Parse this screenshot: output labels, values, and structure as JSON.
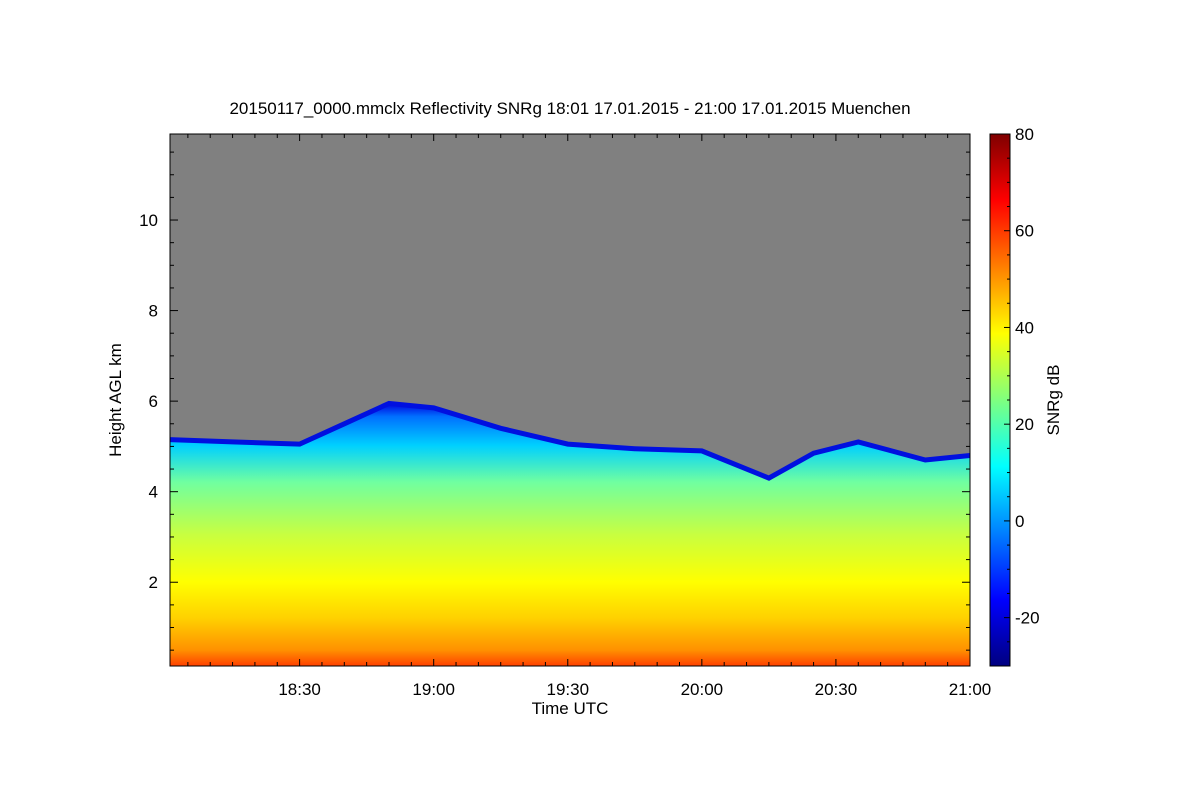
{
  "title": "20150117_0000.mmclx Reflectivity SNRg   18:01 17.01.2015 - 21:00 17.01.2015 Muenchen",
  "chart_data": {
    "type": "heatmap",
    "title": "20150117_0000.mmclx Reflectivity SNRg   18:01 17.01.2015 - 21:00 17.01.2015 Muenchen",
    "xlabel": "Time UTC",
    "ylabel": "Height AGL km",
    "xlim": [
      "18:01",
      "21:00"
    ],
    "ylim": [
      0.15,
      11.9
    ],
    "x_ticks": [
      "18:30",
      "19:00",
      "19:30",
      "20:00",
      "20:30",
      "21:00"
    ],
    "y_ticks": [
      2,
      4,
      6,
      8,
      10
    ],
    "colorbar": {
      "label": "SNRg dB",
      "range": [
        -30,
        80
      ],
      "ticks": [
        -20,
        0,
        20,
        40,
        60,
        80
      ],
      "colormap": [
        "#00007f",
        "#0000ff",
        "#007fff",
        "#00ffff",
        "#7fff7f",
        "#ffff00",
        "#ff7f00",
        "#ff0000",
        "#7f0000"
      ]
    },
    "no_signal_color": "#808080",
    "cloud_top_km": [
      {
        "time": "18:01",
        "height": 5.15
      },
      {
        "time": "18:15",
        "height": 5.1
      },
      {
        "time": "18:30",
        "height": 5.05
      },
      {
        "time": "18:40",
        "height": 5.5
      },
      {
        "time": "18:50",
        "height": 5.95
      },
      {
        "time": "19:00",
        "height": 5.85
      },
      {
        "time": "19:15",
        "height": 5.4
      },
      {
        "time": "19:30",
        "height": 5.05
      },
      {
        "time": "19:45",
        "height": 4.95
      },
      {
        "time": "20:00",
        "height": 4.9
      },
      {
        "time": "20:15",
        "height": 4.3
      },
      {
        "time": "20:25",
        "height": 4.85
      },
      {
        "time": "20:35",
        "height": 5.1
      },
      {
        "time": "20:50",
        "height": 4.7
      },
      {
        "time": "21:00",
        "height": 4.8
      }
    ]
  }
}
